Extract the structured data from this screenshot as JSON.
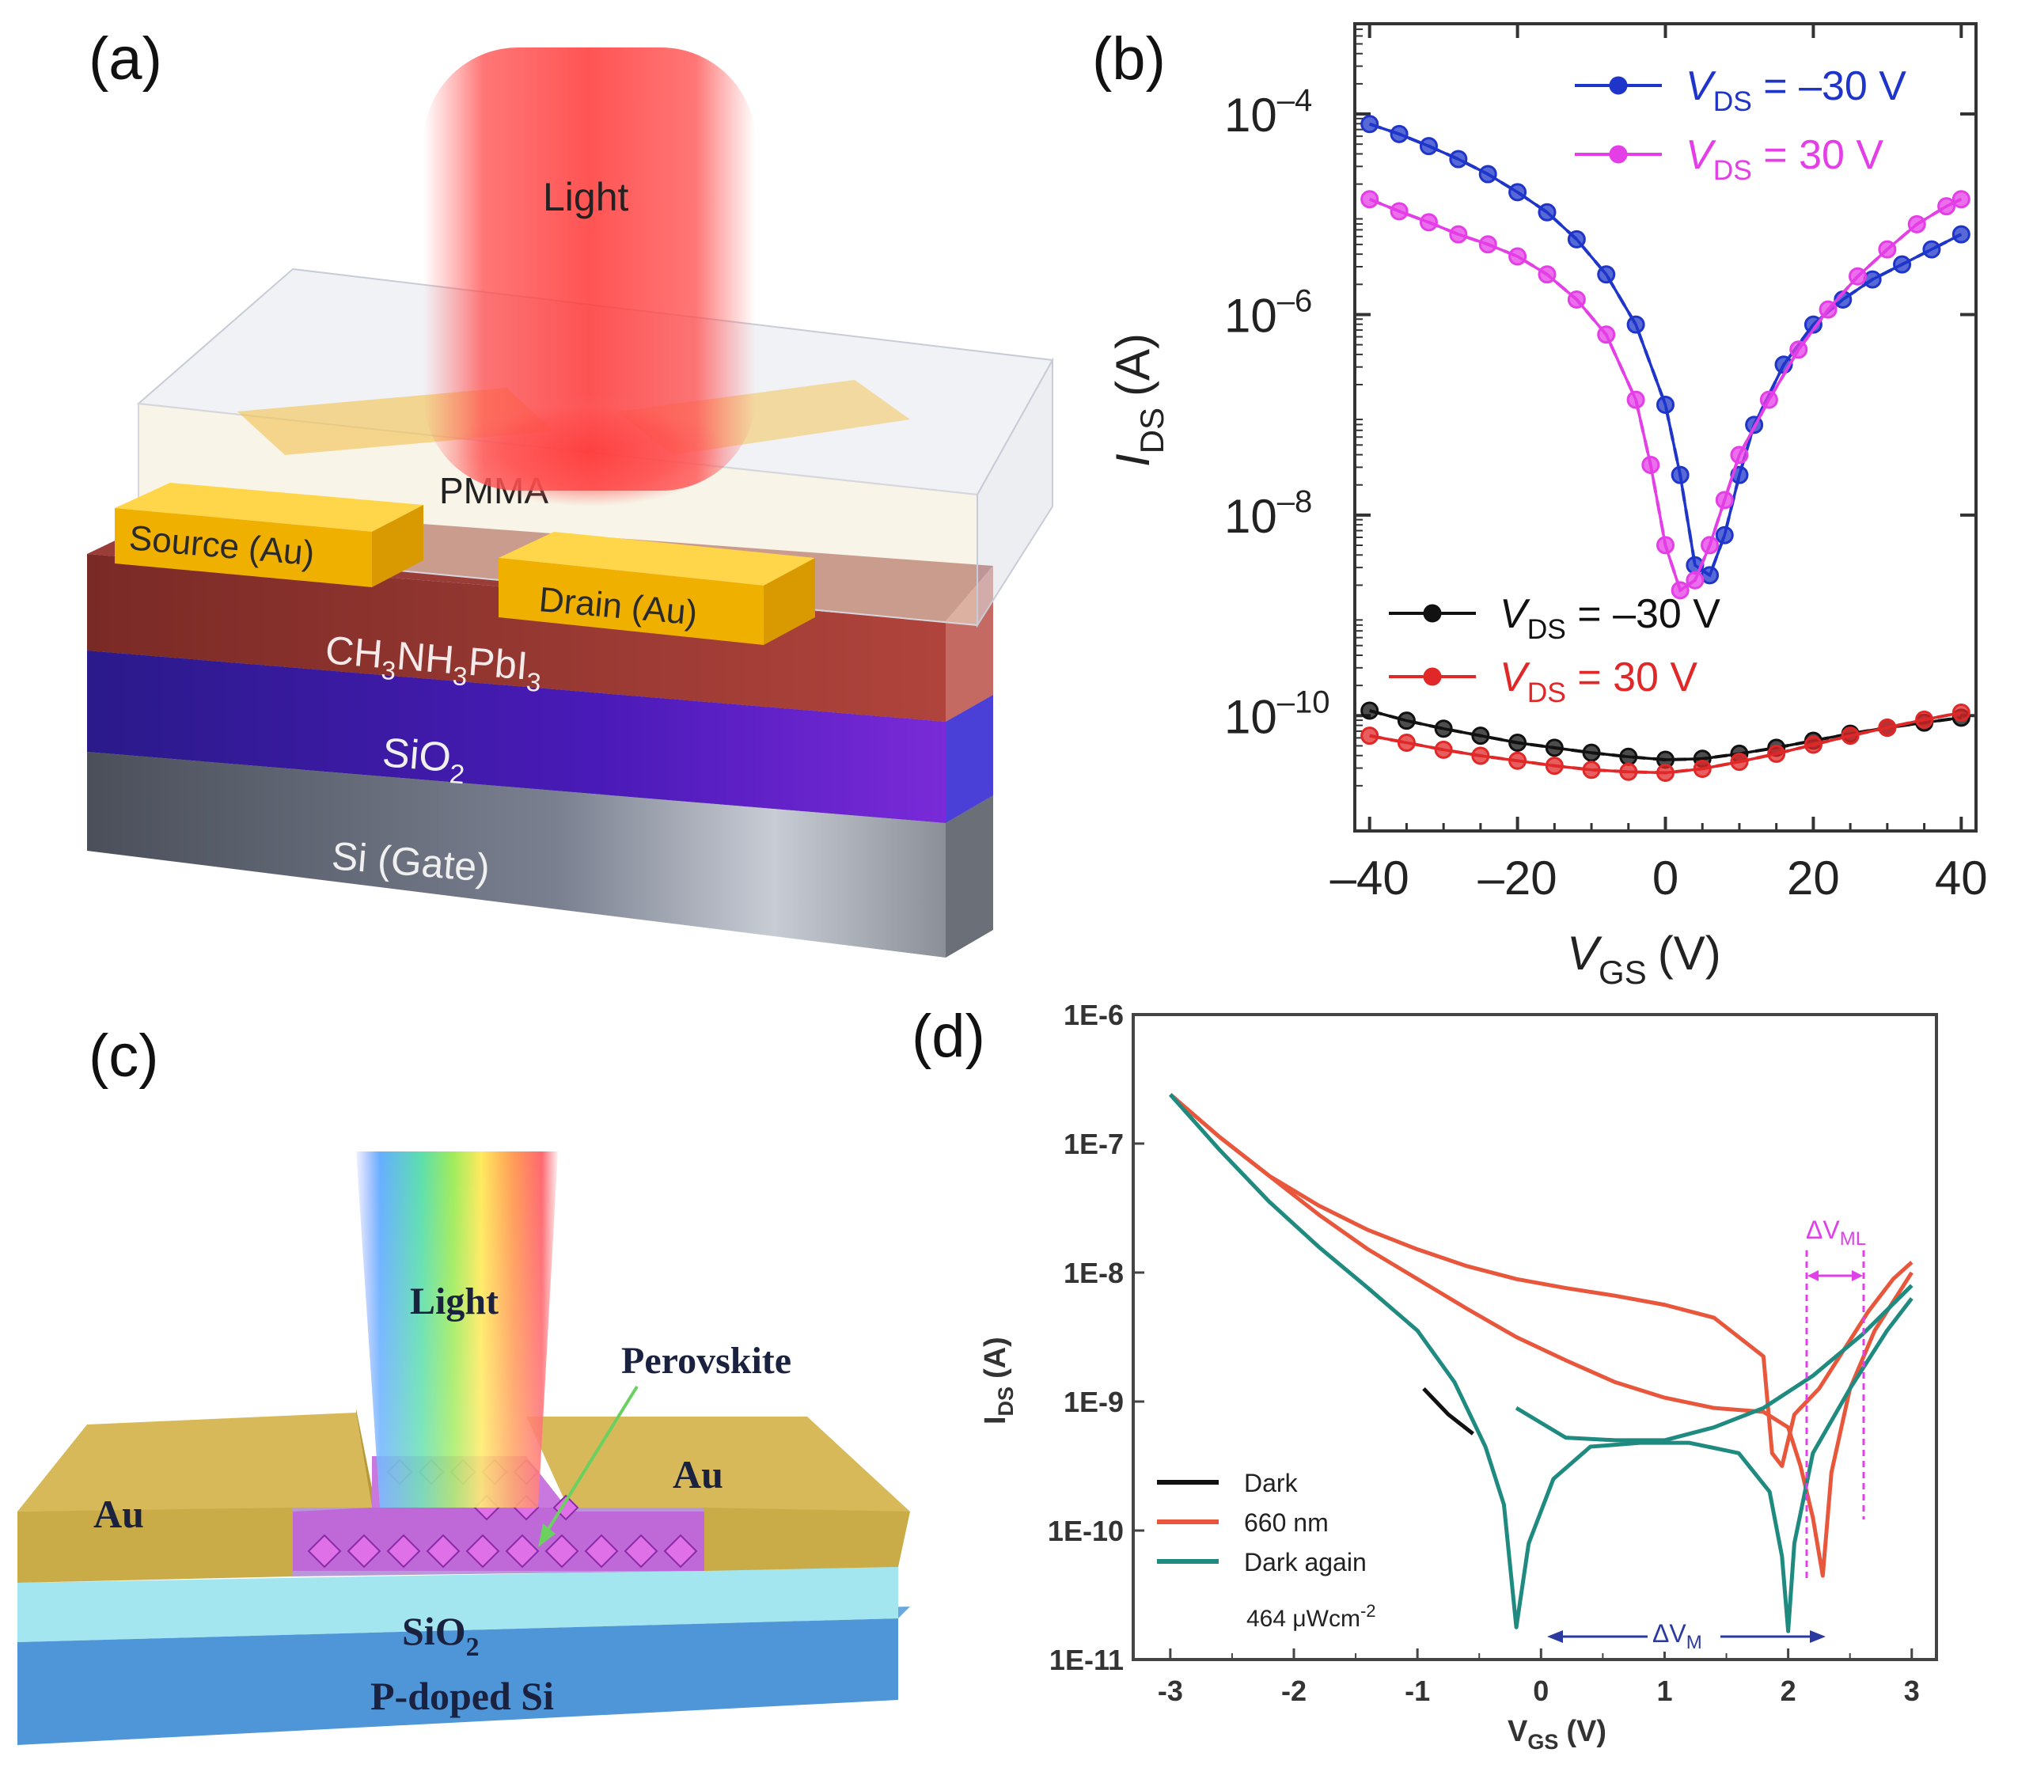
{
  "panels": {
    "a": {
      "label": "(a)",
      "light": "Light",
      "pmma": "PMMA",
      "source": "Source (Au)",
      "drain": "Drain (Au)",
      "perovskite_parts": [
        "CH",
        "3",
        "NH",
        "3",
        "PbI",
        "3"
      ],
      "sio2_parts": [
        "SiO",
        "2"
      ],
      "gate": "Si (Gate)"
    },
    "b": {
      "label": "(b)",
      "ylabel_main": "I",
      "ylabel_sub": "DS",
      "ylabel_unit": "(A)",
      "xlabel_main": "V",
      "xlabel_sub": "GS",
      "xlabel_unit": "(V)"
    },
    "c": {
      "label": "(c)",
      "light": "Light",
      "perovskite": "Perovskite",
      "au_left": "Au",
      "au_right": "Au",
      "sio2_parts": [
        "SiO",
        "2"
      ],
      "substrate": "P-doped Si"
    },
    "d": {
      "label": "(d)",
      "ylabel_main": "I",
      "ylabel_sub": "DS",
      "ylabel_unit": "(A)",
      "xlabel_main": "V",
      "xlabel_sub": "GS",
      "xlabel_unit": "(V)",
      "delta_m_main": "ΔV",
      "delta_m_sub": "M",
      "delta_ml_main": "ΔV",
      "delta_ml_sub": "ML",
      "intensity_main": "464 μWcm",
      "intensity_sup": "-2"
    }
  },
  "chart_data": [
    {
      "panel": "b",
      "type": "line",
      "yscale": "log",
      "xlim": [
        -42,
        42
      ],
      "ylim_exp": [
        -11.15,
        -3.1
      ],
      "x_ticks": [
        -40,
        -20,
        0,
        20,
        40
      ],
      "x_tick_labels": [
        "–40",
        "–20",
        "0",
        "20",
        "40"
      ],
      "y_tick_exps": [
        -10,
        -8,
        -6,
        -4
      ],
      "y_tick_labels_main": [
        "10",
        "10",
        "10",
        "10"
      ],
      "y_tick_labels_sup": [
        "–10",
        "–8",
        "–6",
        "–4"
      ],
      "xlabel": "V_GS (V)",
      "ylabel": "I_DS (A)",
      "legend_light": [
        {
          "label_main": "V",
          "label_sub": "DS",
          "label_rest": " = –30 V",
          "color": "#1f35c9"
        },
        {
          "label_main": "V",
          "label_sub": "DS",
          "label_rest": " = 30 V",
          "color": "#e43ee6"
        }
      ],
      "legend_dark": [
        {
          "label_main": "V",
          "label_sub": "DS",
          "label_rest": " = –30 V",
          "color": "#111111"
        },
        {
          "label_main": "V",
          "label_sub": "DS",
          "label_rest": " = 30 V",
          "color": "#e02828"
        }
      ],
      "series": [
        {
          "name": "Light V_DS = –30 V",
          "color": "#1f35c9",
          "x": [
            -40,
            -36,
            -32,
            -28,
            -24,
            -20,
            -16,
            -12,
            -8,
            -4,
            0,
            2,
            4,
            6,
            8,
            10,
            12,
            16,
            20,
            24,
            28,
            32,
            36,
            40
          ],
          "log_y": [
            -4.1,
            -4.2,
            -4.32,
            -4.45,
            -4.6,
            -4.78,
            -4.98,
            -5.25,
            -5.6,
            -6.1,
            -6.9,
            -7.6,
            -8.5,
            -8.6,
            -8.2,
            -7.6,
            -7.1,
            -6.5,
            -6.1,
            -5.85,
            -5.65,
            -5.5,
            -5.35,
            -5.2
          ]
        },
        {
          "name": "Light V_DS = 30 V",
          "color": "#e43ee6",
          "x": [
            -40,
            -36,
            -32,
            -28,
            -24,
            -20,
            -16,
            -12,
            -8,
            -4,
            -2,
            0,
            2,
            4,
            6,
            8,
            10,
            14,
            18,
            22,
            26,
            30,
            34,
            38,
            40
          ],
          "log_y": [
            -4.85,
            -4.97,
            -5.08,
            -5.2,
            -5.3,
            -5.42,
            -5.6,
            -5.85,
            -6.2,
            -6.85,
            -7.5,
            -8.3,
            -8.75,
            -8.65,
            -8.3,
            -7.85,
            -7.4,
            -6.85,
            -6.35,
            -5.95,
            -5.62,
            -5.35,
            -5.1,
            -4.92,
            -4.85
          ]
        },
        {
          "name": "Dark V_DS = –30 V",
          "color": "#111111",
          "x": [
            -40,
            -35,
            -30,
            -25,
            -20,
            -15,
            -10,
            -5,
            0,
            5,
            10,
            15,
            20,
            25,
            30,
            35,
            40
          ],
          "log_y": [
            -9.95,
            -10.05,
            -10.13,
            -10.2,
            -10.27,
            -10.32,
            -10.37,
            -10.41,
            -10.44,
            -10.43,
            -10.38,
            -10.32,
            -10.25,
            -10.18,
            -10.12,
            -10.07,
            -10.02
          ]
        },
        {
          "name": "Dark V_DS = 30 V",
          "color": "#e02828",
          "x": [
            -40,
            -35,
            -30,
            -25,
            -20,
            -15,
            -10,
            -5,
            0,
            5,
            10,
            15,
            20,
            25,
            30,
            35,
            40
          ],
          "log_y": [
            -10.2,
            -10.27,
            -10.34,
            -10.4,
            -10.45,
            -10.5,
            -10.54,
            -10.56,
            -10.57,
            -10.53,
            -10.46,
            -10.38,
            -10.29,
            -10.2,
            -10.12,
            -10.04,
            -9.97
          ]
        }
      ]
    },
    {
      "panel": "d",
      "type": "line",
      "yscale": "log",
      "xlim": [
        -3.3,
        3.2
      ],
      "ylim_exp": [
        -11,
        -6
      ],
      "x_ticks": [
        -3,
        -2,
        -1,
        0,
        1,
        2,
        3
      ],
      "x_tick_labels": [
        "-3",
        "-2",
        "-1",
        "0",
        "1",
        "2",
        "3"
      ],
      "y_tick_exps": [
        -11,
        -10,
        -9,
        -8,
        -7,
        -6
      ],
      "y_tick_labels": [
        "1E-11",
        "1E-10",
        "1E-9",
        "1E-8",
        "1E-7",
        "1E-6"
      ],
      "xlabel": "V_GS (V)",
      "ylabel": "I_DS (A)",
      "legend": [
        {
          "label": "Dark",
          "color": "#111111"
        },
        {
          "label": "660 nm",
          "color": "#e8573c"
        },
        {
          "label": "Dark again",
          "color": "#1f8b80"
        }
      ],
      "series": [
        {
          "name": "660 nm",
          "color": "#e8573c",
          "x": [
            -3,
            -2.6,
            -2.2,
            -1.8,
            -1.4,
            -1.0,
            -0.6,
            -0.2,
            0.2,
            0.6,
            1.0,
            1.4,
            1.8,
            1.87,
            1.95,
            2.05,
            2.25,
            2.45,
            2.65,
            2.85,
            3.0
          ],
          "log_y": [
            -6.62,
            -6.95,
            -7.25,
            -7.48,
            -7.67,
            -7.82,
            -7.95,
            -8.05,
            -8.12,
            -8.18,
            -8.25,
            -8.35,
            -8.65,
            -9.4,
            -9.5,
            -9.1,
            -8.9,
            -8.6,
            -8.3,
            -8.05,
            -7.92
          ],
          "x2": [
            -3,
            -2.6,
            -2.2,
            -1.8,
            -1.4,
            -1.0,
            -0.6,
            -0.2,
            0.2,
            0.6,
            1.0,
            1.4,
            1.8,
            2.0,
            2.1,
            2.2,
            2.28,
            2.35,
            2.5,
            2.7,
            2.9,
            3.0
          ],
          "log_y2": [
            -6.62,
            -6.95,
            -7.25,
            -7.55,
            -7.82,
            -8.05,
            -8.28,
            -8.5,
            -8.68,
            -8.85,
            -8.97,
            -9.05,
            -9.08,
            -9.2,
            -9.5,
            -9.9,
            -10.35,
            -9.55,
            -8.9,
            -8.45,
            -8.15,
            -8.0
          ]
        },
        {
          "name": "Dark again",
          "color": "#1f8b80",
          "x": [
            -3,
            -2.6,
            -2.2,
            -1.8,
            -1.4,
            -1.0,
            -0.7,
            -0.45,
            -0.3,
            -0.2,
            -0.1,
            0.1,
            0.4,
            0.8,
            1.2,
            1.6,
            1.85,
            1.95,
            2.0,
            2.05,
            2.2,
            2.5,
            2.8,
            3.0
          ],
          "log_y": [
            -6.62,
            -7.05,
            -7.45,
            -7.8,
            -8.12,
            -8.45,
            -8.85,
            -9.35,
            -9.8,
            -10.75,
            -10.1,
            -9.6,
            -9.35,
            -9.32,
            -9.32,
            -9.4,
            -9.7,
            -10.2,
            -10.78,
            -10.1,
            -9.4,
            -8.9,
            -8.45,
            -8.2
          ],
          "x2": [
            -0.2,
            0.2,
            0.6,
            1.0,
            1.4,
            1.8,
            2.2,
            2.6,
            3.0
          ],
          "log_y2": [
            -9.05,
            -9.28,
            -9.3,
            -9.3,
            -9.2,
            -9.05,
            -8.8,
            -8.48,
            -8.1
          ]
        },
        {
          "name": "Dark",
          "color": "#111111",
          "x": [
            -0.95,
            -0.75,
            -0.55
          ],
          "log_y": [
            -8.9,
            -9.1,
            -9.25
          ]
        }
      ]
    }
  ]
}
